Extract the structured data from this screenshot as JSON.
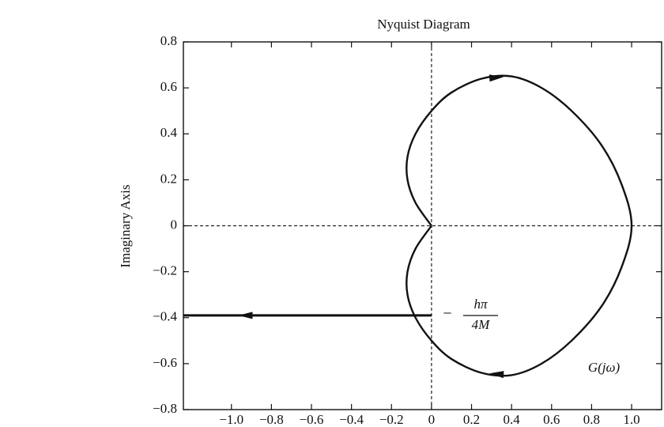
{
  "chart_data": {
    "type": "line",
    "title": "Nyquist Diagram",
    "y_label": "Imaginary Axis",
    "xlim": [
      -1.24,
      1.15
    ],
    "ylim": [
      -0.8,
      0.8
    ],
    "xticks": [
      {
        "value": -1.0,
        "label": "−1.0"
      },
      {
        "value": -0.8,
        "label": "−0.8"
      },
      {
        "value": -0.6,
        "label": "−0.6"
      },
      {
        "value": -0.4,
        "label": "−0.4"
      },
      {
        "value": -0.2,
        "label": "−0.2"
      },
      0,
      0.2,
      0.4,
      0.6,
      0.8,
      {
        "value": 1.0,
        "label": "1.0"
      }
    ],
    "yticks": [
      {
        "value": -0.8,
        "label": "−0.8"
      },
      {
        "value": -0.6,
        "label": "−0.6"
      },
      {
        "value": -0.4,
        "label": "−0.4"
      },
      {
        "value": -0.2,
        "label": "−0.2"
      },
      0,
      0.2,
      0.4,
      0.6,
      0.8
    ],
    "color": "#111111",
    "series": [
      {
        "x": [
          0,
          -0.08,
          -0.12,
          -0.12,
          -0.08,
          0,
          0.1,
          0.25,
          0.4,
          0.55,
          0.7,
          0.85,
          0.95,
          1.0,
          0.95,
          0.85,
          0.7,
          0.55,
          0.4,
          0.25,
          0.1,
          0,
          -0.08,
          -0.12,
          -0.12,
          -0.08,
          0
        ],
        "values": [
          0,
          0.1,
          0.2,
          0.3,
          0.4,
          0.5,
          0.58,
          0.64,
          0.65,
          0.6,
          0.5,
          0.35,
          0.18,
          0,
          -0.18,
          -0.35,
          -0.5,
          -0.6,
          -0.65,
          -0.64,
          -0.58,
          -0.5,
          -0.4,
          -0.3,
          -0.2,
          -0.1,
          0
        ]
      },
      {
        "x": [
          0,
          -1.24
        ],
        "values": [
          -0.39,
          -0.39
        ]
      }
    ],
    "annotations": [
      {
        "prefix": "−",
        "numerator": "hπ",
        "denominator": "4M"
      },
      {
        "text": "G(jω)"
      }
    ]
  }
}
